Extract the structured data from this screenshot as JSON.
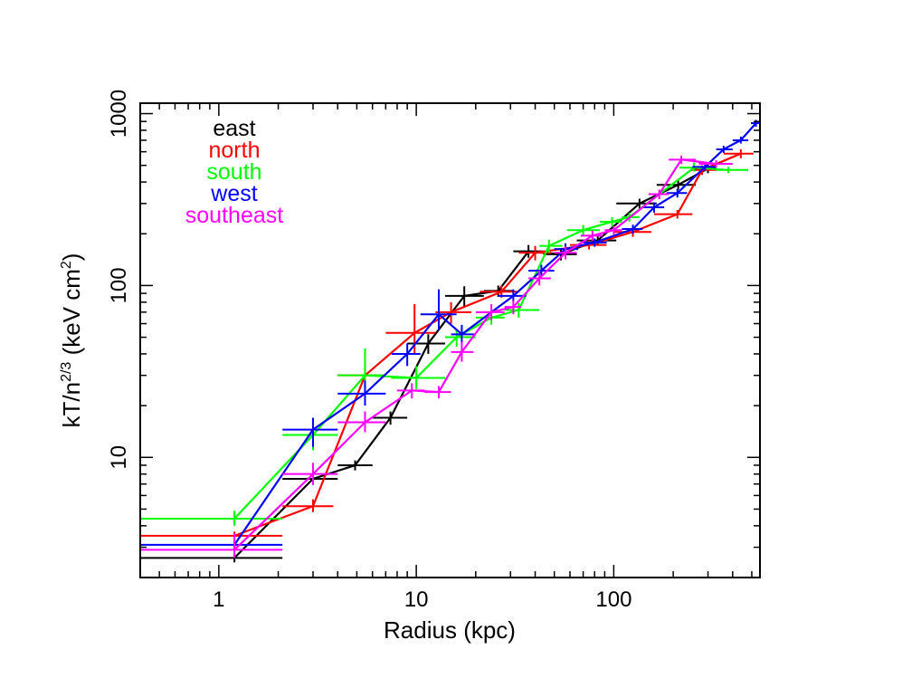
{
  "chart_data": {
    "type": "line",
    "title": "",
    "xlabel": "Radius (kpc)",
    "ylabel_main": "kT/n",
    "ylabel_sup": "2/3",
    "ylabel_rest": " (keV cm",
    "ylabel_unit_sup": "2",
    "ylabel_close": ")",
    "xscale": "log",
    "yscale": "log",
    "xlim": [
      0.4,
      550
    ],
    "ylim": [
      2.0,
      1150
    ],
    "grid": false,
    "legend_position": "top-left",
    "x_ticks": [
      {
        "value": 1,
        "label": "1"
      },
      {
        "value": 10,
        "label": "10"
      },
      {
        "value": 100,
        "label": "100"
      }
    ],
    "y_ticks": [
      {
        "value": 10,
        "label": "10"
      },
      {
        "value": 100,
        "label": "100"
      },
      {
        "value": 1000,
        "label": "1000"
      }
    ],
    "series": [
      {
        "name": "east",
        "color": "#000000",
        "points": [
          {
            "x": 1.2,
            "y": 2.6,
            "xlo": 0.4,
            "xhi": 2.1,
            "ylo": 2.45,
            "yhi": 2.75
          },
          {
            "x": 3.0,
            "y": 7.5,
            "xlo": 2.1,
            "xhi": 4.0,
            "ylo": 7.0,
            "yhi": 8.0
          },
          {
            "x": 4.9,
            "y": 9.0,
            "xlo": 4.0,
            "xhi": 6.0,
            "ylo": 8.4,
            "yhi": 9.6
          },
          {
            "x": 7.4,
            "y": 17.0,
            "xlo": 6.0,
            "xhi": 9.0,
            "ylo": 15.5,
            "yhi": 18.5
          },
          {
            "x": 11.5,
            "y": 46.0,
            "xlo": 9.0,
            "xhi": 14.0,
            "ylo": 40.0,
            "yhi": 52.0
          },
          {
            "x": 17.5,
            "y": 87.0,
            "xlo": 14.0,
            "xhi": 22.0,
            "ylo": 75.0,
            "yhi": 99.0
          },
          {
            "x": 26.0,
            "y": 93.0,
            "xlo": 22.0,
            "xhi": 31.0,
            "ylo": 86.0,
            "yhi": 100.0
          },
          {
            "x": 37.0,
            "y": 158.0,
            "xlo": 31.0,
            "xhi": 44.0,
            "ylo": 145.0,
            "yhi": 172.0
          },
          {
            "x": 54.0,
            "y": 152.0,
            "xlo": 44.0,
            "xhi": 65.0,
            "ylo": 140.0,
            "yhi": 165.0
          },
          {
            "x": 83.0,
            "y": 183.0,
            "xlo": 65.0,
            "xhi": 103.0,
            "ylo": 172.0,
            "yhi": 195.0
          },
          {
            "x": 135.0,
            "y": 300.0,
            "xlo": 103.0,
            "xhi": 165.0,
            "ylo": 280.0,
            "yhi": 320.0
          },
          {
            "x": 212.0,
            "y": 385.0,
            "xlo": 165.0,
            "xhi": 260.0,
            "ylo": 360.0,
            "yhi": 410.0
          },
          {
            "x": 300.0,
            "y": 480.0,
            "xlo": 250.0,
            "xhi": 330.0,
            "ylo": 450.0,
            "yhi": 510.0
          }
        ]
      },
      {
        "name": "north",
        "color": "#ff0000",
        "points": [
          {
            "x": 1.2,
            "y": 3.5,
            "xlo": 0.4,
            "xhi": 2.1,
            "ylo": 3.3,
            "yhi": 3.7
          },
          {
            "x": 3.0,
            "y": 5.2,
            "xlo": 2.1,
            "xhi": 3.8,
            "ylo": 4.8,
            "yhi": 5.7
          },
          {
            "x": 5.5,
            "y": 30.0,
            "xlo": 4.0,
            "xhi": 7.0,
            "ylo": 26.0,
            "yhi": 34.0
          },
          {
            "x": 9.8,
            "y": 53.0,
            "xlo": 7.0,
            "xhi": 12.5,
            "ylo": 40.0,
            "yhi": 78.0
          },
          {
            "x": 15.0,
            "y": 70.0,
            "xlo": 12.5,
            "xhi": 19.0,
            "ylo": 60.0,
            "yhi": 80.0
          },
          {
            "x": 27.0,
            "y": 92.0,
            "xlo": 21.0,
            "xhi": 33.0,
            "ylo": 85.0,
            "yhi": 100.0
          },
          {
            "x": 40.0,
            "y": 155.0,
            "xlo": 33.0,
            "xhi": 48.0,
            "ylo": 140.0,
            "yhi": 170.0
          },
          {
            "x": 75.0,
            "y": 172.0,
            "xlo": 60.0,
            "xhi": 92.0,
            "ylo": 162.0,
            "yhi": 183.0
          },
          {
            "x": 125.0,
            "y": 205.0,
            "xlo": 100.0,
            "xhi": 155.0,
            "ylo": 192.0,
            "yhi": 220.0
          },
          {
            "x": 210.0,
            "y": 260.0,
            "xlo": 160.0,
            "xhi": 250.0,
            "ylo": 245.0,
            "yhi": 275.0
          },
          {
            "x": 280.0,
            "y": 470.0,
            "xlo": 245.0,
            "xhi": 330.0,
            "ylo": 440.0,
            "yhi": 500.0
          },
          {
            "x": 440.0,
            "y": 585.0,
            "xlo": 360.0,
            "xhi": 510.0,
            "ylo": 550.0,
            "yhi": 620.0
          }
        ]
      },
      {
        "name": "south",
        "color": "#00ff00",
        "points": [
          {
            "x": 1.2,
            "y": 4.4,
            "xlo": 0.4,
            "xhi": 2.1,
            "ylo": 4.0,
            "yhi": 4.9
          },
          {
            "x": 3.0,
            "y": 13.5,
            "xlo": 2.1,
            "xhi": 4.0,
            "ylo": 11.0,
            "yhi": 16.0
          },
          {
            "x": 5.5,
            "y": 30.0,
            "xlo": 4.0,
            "xhi": 7.0,
            "ylo": 23.0,
            "yhi": 43.0
          },
          {
            "x": 10.0,
            "y": 29.0,
            "xlo": 7.5,
            "xhi": 14.0,
            "ylo": 25.0,
            "yhi": 34.0
          },
          {
            "x": 16.0,
            "y": 50.0,
            "xlo": 14.0,
            "xhi": 20.0,
            "ylo": 44.0,
            "yhi": 56.0
          },
          {
            "x": 24.0,
            "y": 65.0,
            "xlo": 20.0,
            "xhi": 28.0,
            "ylo": 59.0,
            "yhi": 71.0
          },
          {
            "x": 33.0,
            "y": 72.0,
            "xlo": 28.0,
            "xhi": 42.0,
            "ylo": 65.0,
            "yhi": 79.0
          },
          {
            "x": 47.0,
            "y": 170.0,
            "xlo": 42.0,
            "xhi": 55.0,
            "ylo": 155.0,
            "yhi": 185.0
          },
          {
            "x": 70.0,
            "y": 210.0,
            "xlo": 58.0,
            "xhi": 85.0,
            "ylo": 195.0,
            "yhi": 225.0
          },
          {
            "x": 98.0,
            "y": 235.0,
            "xlo": 85.0,
            "xhi": 110.0,
            "ylo": 220.0,
            "yhi": 250.0
          },
          {
            "x": 120.0,
            "y": 250.0,
            "xlo": 110.0,
            "xhi": 135.0,
            "ylo": 235.0,
            "yhi": 265.0
          },
          {
            "x": 255.0,
            "y": 485.0,
            "xlo": 215.0,
            "xhi": 300.0,
            "ylo": 460.0,
            "yhi": 520.0
          },
          {
            "x": 380.0,
            "y": 470.0,
            "xlo": 330.0,
            "xhi": 480.0,
            "ylo": 450.0,
            "yhi": 490.0
          }
        ]
      },
      {
        "name": "west",
        "color": "#0000ff",
        "points": [
          {
            "x": 1.2,
            "y": 3.1,
            "xlo": 0.4,
            "xhi": 2.1,
            "ylo": 2.9,
            "yhi": 3.3
          },
          {
            "x": 3.0,
            "y": 14.5,
            "xlo": 2.1,
            "xhi": 4.0,
            "ylo": 11.5,
            "yhi": 17.0
          },
          {
            "x": 5.5,
            "y": 23.5,
            "xlo": 4.0,
            "xhi": 7.0,
            "ylo": 20.0,
            "yhi": 28.0
          },
          {
            "x": 9.0,
            "y": 40.0,
            "xlo": 7.5,
            "xhi": 10.5,
            "ylo": 34.0,
            "yhi": 46.0
          },
          {
            "x": 13.0,
            "y": 68.0,
            "xlo": 10.5,
            "xhi": 16.0,
            "ylo": 55.0,
            "yhi": 95.0
          },
          {
            "x": 17.0,
            "y": 52.0,
            "xlo": 15.0,
            "xhi": 20.0,
            "ylo": 46.0,
            "yhi": 59.0
          },
          {
            "x": 31.0,
            "y": 87.0,
            "xlo": 26.0,
            "xhi": 36.0,
            "ylo": 80.0,
            "yhi": 95.0
          },
          {
            "x": 43.0,
            "y": 122.0,
            "xlo": 37.0,
            "xhi": 50.0,
            "ylo": 112.0,
            "yhi": 132.0
          },
          {
            "x": 57.0,
            "y": 163.0,
            "xlo": 50.0,
            "xhi": 66.0,
            "ylo": 150.0,
            "yhi": 176.0
          },
          {
            "x": 80.0,
            "y": 178.0,
            "xlo": 70.0,
            "xhi": 92.0,
            "ylo": 168.0,
            "yhi": 188.0
          },
          {
            "x": 125.0,
            "y": 213.0,
            "xlo": 110.0,
            "xhi": 140.0,
            "ylo": 200.0,
            "yhi": 226.0
          },
          {
            "x": 160.0,
            "y": 285.0,
            "xlo": 140.0,
            "xhi": 180.0,
            "ylo": 265.0,
            "yhi": 305.0
          },
          {
            "x": 210.0,
            "y": 345.0,
            "xlo": 185.0,
            "xhi": 235.0,
            "ylo": 325.0,
            "yhi": 365.0
          },
          {
            "x": 290.0,
            "y": 490.0,
            "xlo": 250.0,
            "xhi": 330.0,
            "ylo": 465.0,
            "yhi": 515.0
          },
          {
            "x": 360.0,
            "y": 620.0,
            "xlo": 330.0,
            "xhi": 400.0,
            "ylo": 590.0,
            "yhi": 650.0
          },
          {
            "x": 440.0,
            "y": 700.0,
            "xlo": 400.0,
            "xhi": 480.0,
            "ylo": 670.0,
            "yhi": 735.0
          },
          {
            "x": 525.0,
            "y": 880.0,
            "xlo": 495.0,
            "xhi": 550.0,
            "ylo": 840.0,
            "yhi": 920.0
          }
        ]
      },
      {
        "name": "southeast",
        "color": "#ff00ff",
        "points": [
          {
            "x": 1.2,
            "y": 2.9,
            "xlo": 0.4,
            "xhi": 2.1,
            "ylo": 2.6,
            "yhi": 3.6
          },
          {
            "x": 3.0,
            "y": 8.0,
            "xlo": 2.1,
            "xhi": 4.0,
            "ylo": 6.9,
            "yhi": 9.3
          },
          {
            "x": 5.5,
            "y": 16.0,
            "xlo": 4.0,
            "xhi": 7.0,
            "ylo": 14.0,
            "yhi": 18.5
          },
          {
            "x": 9.5,
            "y": 24.5,
            "xlo": 8.0,
            "xhi": 11.0,
            "ylo": 22.0,
            "yhi": 27.0
          },
          {
            "x": 13.0,
            "y": 24.0,
            "xlo": 11.0,
            "xhi": 15.0,
            "ylo": 22.0,
            "yhi": 26.0
          },
          {
            "x": 17.0,
            "y": 41.0,
            "xlo": 15.0,
            "xhi": 19.5,
            "ylo": 36.0,
            "yhi": 47.0
          },
          {
            "x": 24.0,
            "y": 70.0,
            "xlo": 20.0,
            "xhi": 28.0,
            "ylo": 63.0,
            "yhi": 78.0
          },
          {
            "x": 31.0,
            "y": 75.0,
            "xlo": 28.0,
            "xhi": 34.0,
            "ylo": 68.0,
            "yhi": 82.0
          },
          {
            "x": 42.0,
            "y": 110.0,
            "xlo": 37.0,
            "xhi": 48.0,
            "ylo": 100.0,
            "yhi": 122.0
          },
          {
            "x": 57.0,
            "y": 155.0,
            "xlo": 50.0,
            "xhi": 65.0,
            "ylo": 142.0,
            "yhi": 168.0
          },
          {
            "x": 78.0,
            "y": 195.0,
            "xlo": 68.0,
            "xhi": 88.0,
            "ylo": 182.0,
            "yhi": 208.0
          },
          {
            "x": 100.0,
            "y": 210.0,
            "xlo": 90.0,
            "xhi": 110.0,
            "ylo": 198.0,
            "yhi": 222.0
          },
          {
            "x": 170.0,
            "y": 340.0,
            "xlo": 150.0,
            "xhi": 190.0,
            "ylo": 318.0,
            "yhi": 362.0
          },
          {
            "x": 220.0,
            "y": 540.0,
            "xlo": 190.0,
            "xhi": 260.0,
            "ylo": 510.0,
            "yhi": 570.0
          },
          {
            "x": 330.0,
            "y": 510.0,
            "xlo": 270.0,
            "xhi": 400.0,
            "ylo": 485.0,
            "yhi": 535.0
          }
        ]
      }
    ]
  }
}
